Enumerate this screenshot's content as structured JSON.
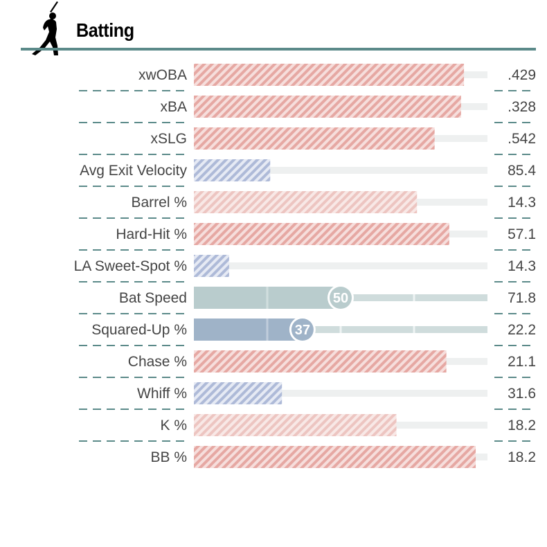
{
  "section": {
    "title": "Batting",
    "icon": "batter-silhouette-icon"
  },
  "colors": {
    "rule": "#5b8a89",
    "track": "#eef0f0",
    "hatch_red": "#e5a39e",
    "hatch_red_light": "#efc7c4",
    "hatch_blue": "#a9b6d6",
    "solid_teal": "#b9cccd",
    "solid_blue": "#9fb3c8",
    "text": "#444444"
  },
  "chart_data": {
    "type": "bar",
    "orientation": "horizontal",
    "xlim": [
      0,
      100
    ],
    "grid": false,
    "legend": "none",
    "metrics": [
      {
        "label": "xwOBA",
        "value": ".429",
        "percentile": 92,
        "style": "hatch-red"
      },
      {
        "label": "xBA",
        "value": ".328",
        "percentile": 91,
        "style": "hatch-red"
      },
      {
        "label": "xSLG",
        "value": ".542",
        "percentile": 82,
        "style": "hatch-red"
      },
      {
        "label": "Avg Exit Velocity",
        "value": "85.4",
        "percentile": 26,
        "style": "hatch-blue"
      },
      {
        "label": "Barrel %",
        "value": "14.3",
        "percentile": 76,
        "style": "hatch-red-light"
      },
      {
        "label": "Hard-Hit %",
        "value": "57.1",
        "percentile": 87,
        "style": "hatch-red"
      },
      {
        "label": "LA Sweet-Spot %",
        "value": "14.3",
        "percentile": 12,
        "style": "hatch-blue"
      },
      {
        "label": "Bat Speed",
        "value": "71.8",
        "percentile": 50,
        "style": "solid-teal",
        "percentile_label": "50"
      },
      {
        "label": "Squared-Up %",
        "value": "22.2",
        "percentile": 37,
        "style": "solid-blue",
        "percentile_label": "37"
      },
      {
        "label": "Chase %",
        "value": "21.1",
        "percentile": 86,
        "style": "hatch-red"
      },
      {
        "label": "Whiff %",
        "value": "31.6",
        "percentile": 30,
        "style": "hatch-blue"
      },
      {
        "label": "K %",
        "value": "18.2",
        "percentile": 69,
        "style": "hatch-red-light"
      },
      {
        "label": "BB %",
        "value": "18.2",
        "percentile": 96,
        "style": "hatch-red"
      }
    ]
  }
}
